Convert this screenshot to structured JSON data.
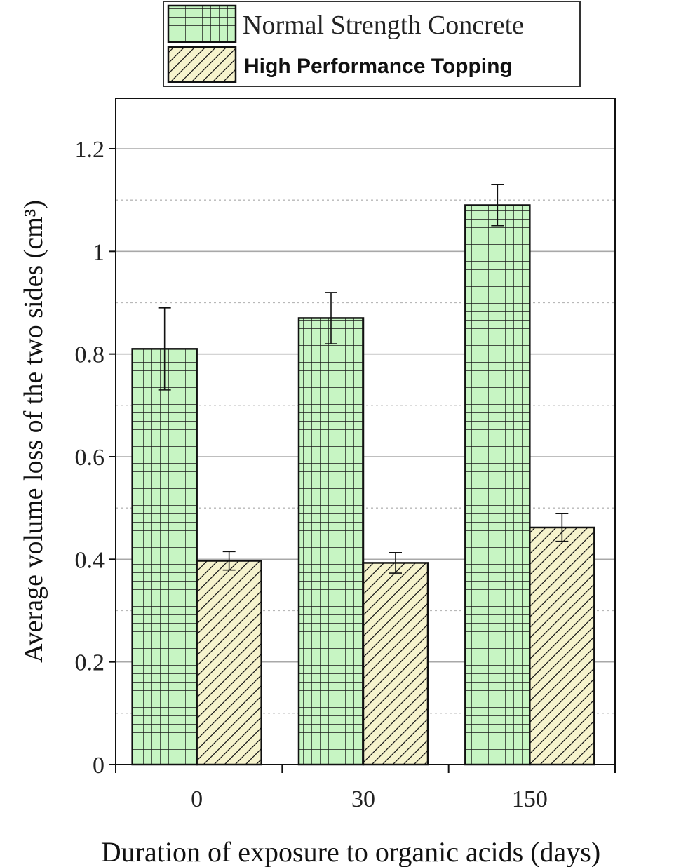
{
  "chart_data": {
    "type": "bar",
    "xlabel": "Duration of exposure to organic acids (days)",
    "ylabel": "Average volume loss of the two sides (cm³)",
    "categories": [
      "0",
      "30",
      "150"
    ],
    "ylim": [
      0,
      1.3
    ],
    "yticks": [
      0,
      0.2,
      0.4,
      0.6,
      0.8,
      1,
      1.2
    ],
    "ytick_labels": [
      "0",
      "0.2",
      "0.4",
      "0.6",
      "0.8",
      "1",
      "1.2"
    ],
    "grid": true,
    "legend_position": "top",
    "series": [
      {
        "name": "Normal Strength Concrete",
        "values": [
          0.81,
          0.87,
          1.09
        ],
        "errors": [
          0.08,
          0.05,
          0.04
        ],
        "fill": "#c7f5c3",
        "pattern": "grid"
      },
      {
        "name": "High Performance Topping",
        "values": [
          0.397,
          0.393,
          0.462
        ],
        "errors": [
          0.018,
          0.02,
          0.027
        ],
        "fill": "#f6f3cd",
        "pattern": "diagonal-hatch"
      }
    ]
  }
}
